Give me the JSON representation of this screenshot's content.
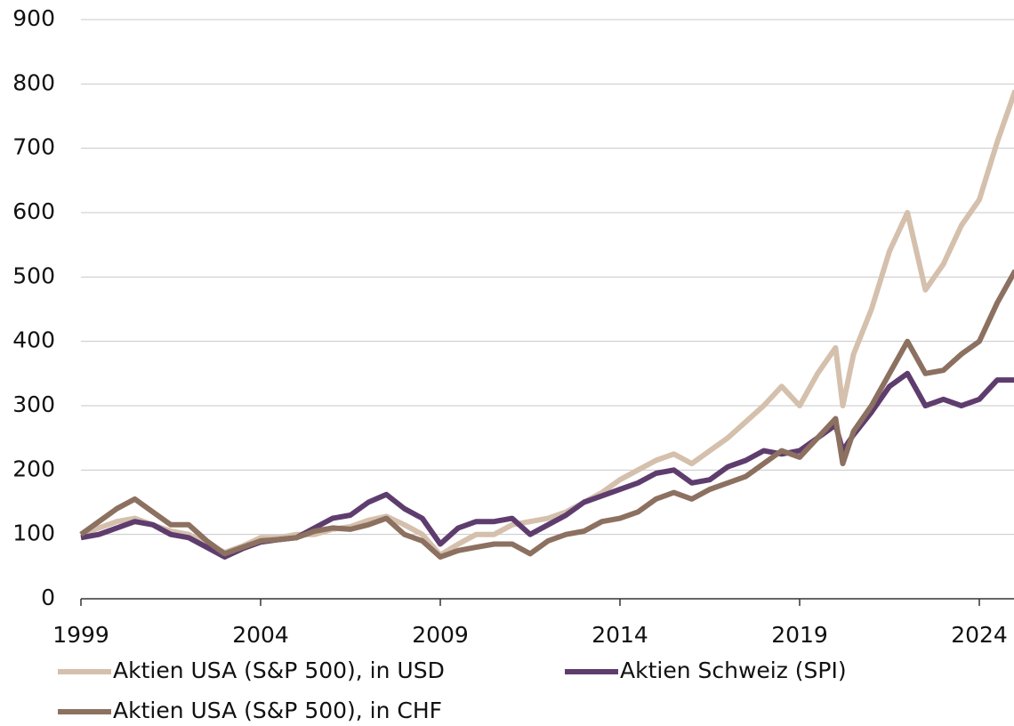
{
  "chart_data": {
    "type": "line",
    "x": [
      1999,
      1999.5,
      2000,
      2000.5,
      2001,
      2001.5,
      2002,
      2002.5,
      2003,
      2003.5,
      2004,
      2004.5,
      2005,
      2005.5,
      2006,
      2006.5,
      2007,
      2007.5,
      2008,
      2008.5,
      2009,
      2009.5,
      2010,
      2010.5,
      2011,
      2011.5,
      2012,
      2012.5,
      2013,
      2013.5,
      2014,
      2014.5,
      2015,
      2015.5,
      2016,
      2016.5,
      2017,
      2017.5,
      2018,
      2018.5,
      2019,
      2019.5,
      2020,
      2020.2,
      2020.5,
      2021,
      2021.5,
      2022,
      2022.5,
      2023,
      2023.5,
      2024,
      2024.5,
      2025
    ],
    "series": [
      {
        "name": "Aktien USA (S&P 500), in USD",
        "color": "#d4c0ac",
        "values": [
          100,
          110,
          120,
          125,
          115,
          105,
          100,
          85,
          72,
          82,
          95,
          95,
          100,
          100,
          108,
          112,
          122,
          128,
          115,
          100,
          68,
          85,
          100,
          100,
          115,
          120,
          125,
          135,
          150,
          165,
          185,
          200,
          215,
          225,
          210,
          230,
          250,
          275,
          300,
          330,
          300,
          350,
          390,
          300,
          380,
          450,
          540,
          600,
          480,
          520,
          580,
          620,
          710,
          790
        ]
      },
      {
        "name": "Aktien Schweiz (SPI)",
        "color": "#5e3d6e",
        "values": [
          95,
          100,
          110,
          120,
          115,
          100,
          95,
          80,
          65,
          78,
          88,
          92,
          95,
          110,
          125,
          130,
          150,
          162,
          140,
          125,
          85,
          110,
          120,
          120,
          125,
          100,
          115,
          130,
          150,
          160,
          170,
          180,
          195,
          200,
          180,
          185,
          205,
          215,
          230,
          225,
          230,
          250,
          270,
          230,
          255,
          290,
          330,
          350,
          300,
          310,
          300,
          310,
          340,
          340
        ]
      },
      {
        "name": "Aktien USA (S&P 500), in CHF",
        "color": "#8c7060",
        "values": [
          100,
          120,
          140,
          155,
          135,
          115,
          115,
          90,
          70,
          80,
          90,
          92,
          95,
          105,
          110,
          108,
          115,
          125,
          100,
          90,
          65,
          75,
          80,
          85,
          85,
          70,
          90,
          100,
          105,
          120,
          125,
          135,
          155,
          165,
          155,
          170,
          180,
          190,
          210,
          230,
          220,
          250,
          280,
          210,
          260,
          300,
          350,
          400,
          350,
          355,
          380,
          400,
          460,
          510
        ]
      }
    ],
    "xlim": [
      1999,
      2025
    ],
    "xticks": [
      1999,
      2004,
      2009,
      2014,
      2019,
      2024
    ],
    "ylim": [
      0,
      900
    ],
    "yticks": [
      0,
      100,
      200,
      300,
      400,
      500,
      600,
      700,
      800,
      900
    ],
    "grid": true
  }
}
